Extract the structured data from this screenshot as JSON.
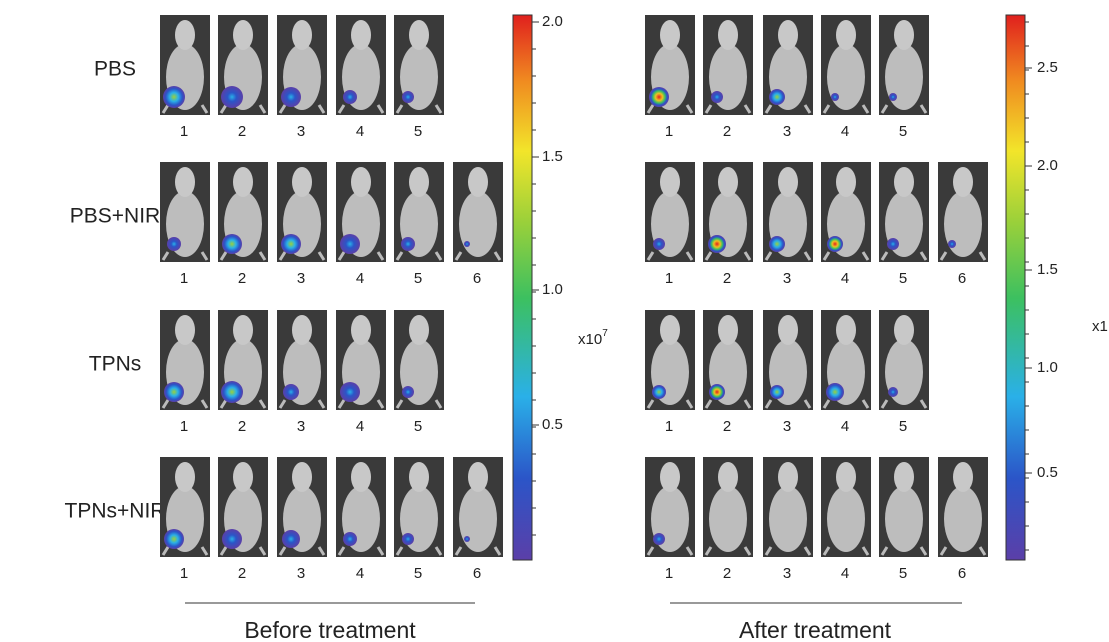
{
  "left_panel": {
    "rows": [
      {
        "label": "PBS",
        "numbers": [
          1,
          2,
          3,
          4,
          5
        ]
      },
      {
        "label": "PBS+NIR",
        "numbers": [
          1,
          2,
          3,
          4,
          5,
          6
        ]
      },
      {
        "label": "TPNs",
        "numbers": [
          1,
          2,
          3,
          4,
          5
        ]
      },
      {
        "label": "TPNs+NIR",
        "numbers": [
          1,
          2,
          3,
          4,
          5,
          6
        ]
      }
    ],
    "colorbar": {
      "ticks": [
        "2.0",
        "1.5",
        "1.0",
        "0.5"
      ],
      "unit": "x10",
      "exponent": "7"
    },
    "caption": "Before treatment"
  },
  "right_panel": {
    "rows": [
      {
        "numbers": [
          1,
          2,
          3,
          4,
          5
        ]
      },
      {
        "numbers": [
          1,
          2,
          3,
          4,
          5,
          6
        ]
      },
      {
        "numbers": [
          1,
          2,
          3,
          4,
          5
        ]
      },
      {
        "numbers": [
          1,
          2,
          3,
          4,
          5,
          6
        ]
      }
    ],
    "colorbar": {
      "ticks": [
        "2.5",
        "2.0",
        "1.5",
        "1.0",
        "0.5"
      ],
      "unit": "x1"
    },
    "caption": "After treatment"
  }
}
